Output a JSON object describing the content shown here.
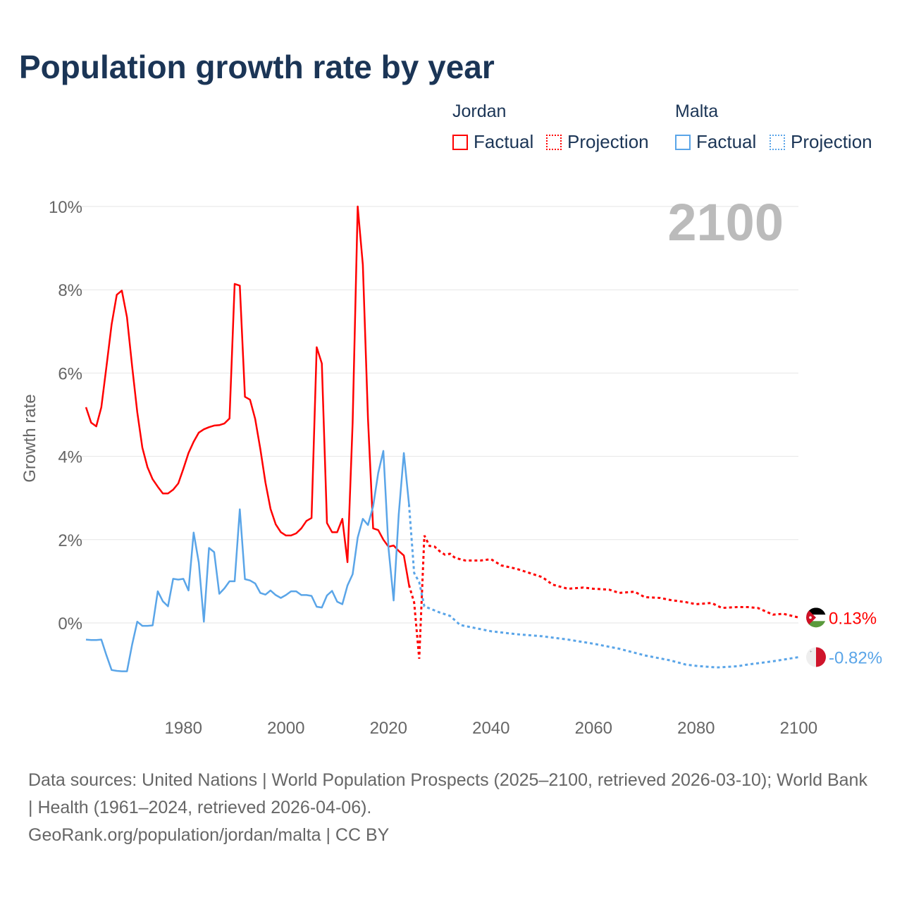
{
  "title": "Population growth rate by year",
  "legend": {
    "groups": [
      {
        "name": "Jordan",
        "factual": "Factual",
        "projection": "Projection",
        "color": "#ff0000"
      },
      {
        "name": "Malta",
        "factual": "Factual",
        "projection": "Projection",
        "color": "#5aa5e8"
      }
    ]
  },
  "footer": {
    "sources": "Data sources: United Nations | World Population Prospects (2025–2100, retrieved 2026-03-10); World Bank | Health (1961–2024, retrieved 2026-04-06).",
    "credit": "GeoRank.org/population/jordan/malta | CC BY"
  },
  "chart_data": {
    "type": "line",
    "title": "Population growth rate by year",
    "xlabel": "",
    "ylabel": "Growth rate",
    "year_overlay": "2100",
    "xlim": [
      1961,
      2100
    ],
    "ylim": [
      -2,
      10
    ],
    "x_ticks": [
      "1980",
      "2000",
      "2020",
      "2040",
      "2060",
      "2080",
      "2100"
    ],
    "y_ticks": [
      "0%",
      "2%",
      "4%",
      "6%",
      "8%",
      "10%"
    ],
    "y_tick_values": [
      0,
      2,
      4,
      6,
      8,
      10
    ],
    "x_tick_values": [
      1980,
      2000,
      2020,
      2040,
      2060,
      2080,
      2100
    ],
    "grid": true,
    "legend_position": "top-right",
    "series": [
      {
        "name": "Jordan",
        "color": "#ff0000",
        "end_label": "0.13%",
        "factual": {
          "x": [
            1961,
            1962,
            1963,
            1964,
            1965,
            1966,
            1967,
            1968,
            1969,
            1970,
            1971,
            1972,
            1973,
            1974,
            1975,
            1976,
            1977,
            1978,
            1979,
            1980,
            1981,
            1982,
            1983,
            1984,
            1985,
            1986,
            1987,
            1988,
            1989,
            1990,
            1991,
            1992,
            1993,
            1994,
            1995,
            1996,
            1997,
            1998,
            1999,
            2000,
            2001,
            2002,
            2003,
            2004,
            2005,
            2006,
            2007,
            2008,
            2009,
            2010,
            2011,
            2012,
            2013,
            2014,
            2015,
            2016,
            2017,
            2018,
            2019,
            2020,
            2021,
            2022,
            2023,
            2024
          ],
          "y": [
            5.18,
            4.81,
            4.72,
            5.18,
            6.16,
            7.17,
            7.88,
            7.98,
            7.34,
            6.16,
            5.06,
            4.21,
            3.74,
            3.45,
            3.27,
            3.11,
            3.11,
            3.2,
            3.35,
            3.7,
            4.08,
            4.35,
            4.57,
            4.65,
            4.7,
            4.74,
            4.75,
            4.79,
            4.91,
            8.14,
            8.1,
            5.43,
            5.36,
            4.9,
            4.18,
            3.37,
            2.74,
            2.37,
            2.18,
            2.1,
            2.1,
            2.15,
            2.27,
            2.45,
            2.52,
            6.62,
            6.23,
            2.4,
            2.18,
            2.18,
            2.5,
            1.46,
            4.8,
            10.0,
            8.6,
            4.9,
            2.27,
            2.23,
            2.0,
            1.83,
            1.86,
            1.73,
            1.62,
            0.91
          ]
        },
        "projection": {
          "x": [
            2024,
            2025,
            2026,
            2027,
            2028,
            2029,
            2030,
            2031,
            2032,
            2033,
            2035,
            2038,
            2040,
            2042,
            2045,
            2048,
            2050,
            2052,
            2055,
            2058,
            2060,
            2063,
            2065,
            2068,
            2070,
            2073,
            2075,
            2078,
            2080,
            2083,
            2085,
            2088,
            2090,
            2092,
            2095,
            2097,
            2100
          ],
          "y": [
            0.91,
            0.49,
            -0.86,
            2.1,
            1.85,
            1.83,
            1.72,
            1.64,
            1.66,
            1.56,
            1.5,
            1.5,
            1.53,
            1.38,
            1.3,
            1.18,
            1.1,
            0.92,
            0.82,
            0.85,
            0.82,
            0.8,
            0.72,
            0.75,
            0.62,
            0.6,
            0.55,
            0.5,
            0.45,
            0.48,
            0.36,
            0.38,
            0.38,
            0.36,
            0.2,
            0.22,
            0.13
          ]
        }
      },
      {
        "name": "Malta",
        "color": "#5aa5e8",
        "end_label": "-0.82%",
        "factual": {
          "x": [
            1961,
            1962,
            1963,
            1964,
            1965,
            1966,
            1967,
            1968,
            1969,
            1970,
            1971,
            1972,
            1973,
            1974,
            1975,
            1976,
            1977,
            1978,
            1979,
            1980,
            1981,
            1982,
            1983,
            1984,
            1985,
            1986,
            1987,
            1988,
            1989,
            1990,
            1991,
            1992,
            1993,
            1994,
            1995,
            1996,
            1997,
            1998,
            1999,
            2000,
            2001,
            2002,
            2003,
            2004,
            2005,
            2006,
            2007,
            2008,
            2009,
            2010,
            2011,
            2012,
            2013,
            2014,
            2015,
            2016,
            2017,
            2018,
            2019,
            2020,
            2021,
            2022,
            2023,
            2024
          ],
          "y": [
            -0.4,
            -0.41,
            -0.41,
            -0.4,
            -0.78,
            -1.13,
            -1.15,
            -1.16,
            -1.16,
            -0.52,
            0.03,
            -0.07,
            -0.07,
            -0.06,
            0.76,
            0.52,
            0.4,
            1.06,
            1.04,
            1.06,
            0.78,
            2.17,
            1.45,
            0.03,
            1.8,
            1.7,
            0.7,
            0.83,
            1.0,
            1.0,
            2.73,
            1.05,
            1.02,
            0.95,
            0.72,
            0.68,
            0.78,
            0.67,
            0.6,
            0.67,
            0.76,
            0.76,
            0.67,
            0.67,
            0.65,
            0.39,
            0.37,
            0.66,
            0.77,
            0.51,
            0.45,
            0.9,
            1.17,
            2.05,
            2.5,
            2.35,
            2.8,
            3.6,
            4.13,
            1.8,
            0.54,
            2.6,
            4.08,
            2.85
          ]
        },
        "projection": {
          "x": [
            2024,
            2025,
            2026,
            2027,
            2028,
            2030,
            2032,
            2034,
            2036,
            2040,
            2045,
            2050,
            2055,
            2060,
            2065,
            2070,
            2075,
            2078,
            2080,
            2084,
            2088,
            2090,
            2095,
            2100
          ],
          "y": [
            2.85,
            1.2,
            0.98,
            0.4,
            0.35,
            0.25,
            0.17,
            -0.05,
            -0.1,
            -0.2,
            -0.27,
            -0.32,
            -0.4,
            -0.5,
            -0.62,
            -0.78,
            -0.9,
            -1.0,
            -1.03,
            -1.07,
            -1.04,
            -1.0,
            -0.92,
            -0.82
          ]
        }
      }
    ]
  }
}
